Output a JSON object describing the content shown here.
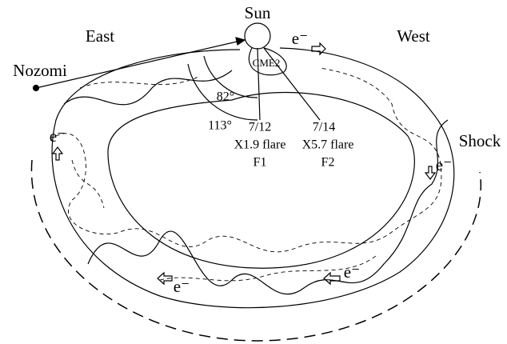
{
  "labels": {
    "sun": "Sun",
    "east": "East",
    "west": "West",
    "nozomi": "Nozomi",
    "shock": "Shock",
    "cme": "CME2",
    "angles": [
      "82°",
      "113°"
    ],
    "flares": [
      {
        "date": "7/12",
        "class": "X1.9 flare",
        "name": "F1"
      },
      {
        "date": "7/14",
        "class": "X5.7 flare",
        "name": "F2"
      }
    ],
    "electrons": [
      "e⁻",
      "e⁻",
      "e⁻",
      "e⁻",
      "e⁻"
    ]
  }
}
